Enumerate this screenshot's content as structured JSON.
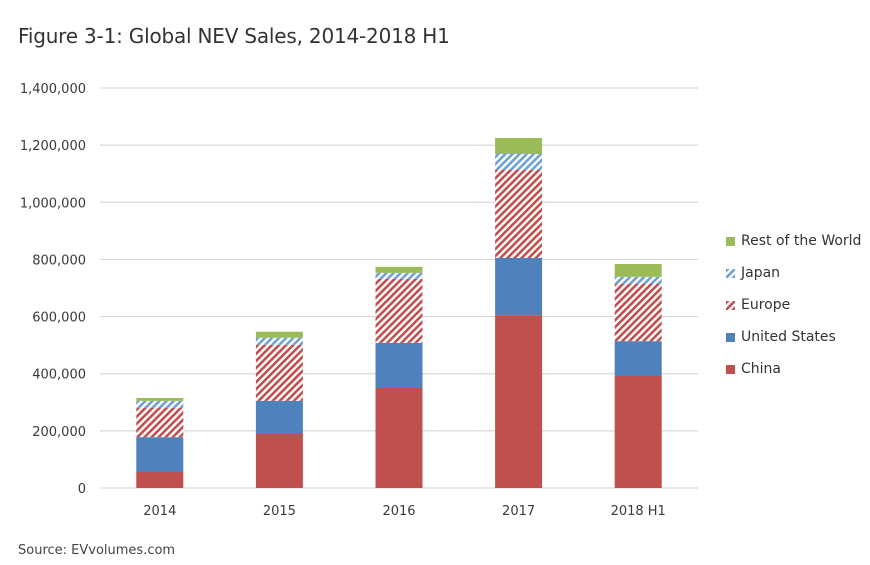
{
  "title": "Figure 3-1: Global NEV Sales, 2014-2018 H1",
  "source": "Source: EVvolumes.com",
  "chart_data": {
    "type": "bar",
    "stacked": true,
    "title": "Figure 3-1: Global NEV Sales, 2014-2018 H1",
    "xlabel": "",
    "ylabel": "",
    "categories": [
      "2014",
      "2015",
      "2016",
      "2017",
      "2018 H1"
    ],
    "ylim": [
      0,
      1400000
    ],
    "yticks": [
      0,
      200000,
      400000,
      600000,
      800000,
      1000000,
      1200000,
      1400000
    ],
    "ytick_labels": [
      "0",
      "200,000",
      "400,000",
      "600,000",
      "800,000",
      "1,000,000",
      "1,200,000",
      "1,400,000"
    ],
    "grid": true,
    "legend_position": "right",
    "series": [
      {
        "name": "China",
        "color": "#c0504d",
        "pattern": "solid",
        "values": [
          56000,
          189000,
          350000,
          605000,
          392000
        ]
      },
      {
        "name": "United States",
        "color": "#4f81bd",
        "pattern": "solid",
        "values": [
          122000,
          116000,
          158000,
          200000,
          122000
        ]
      },
      {
        "name": "Europe",
        "color": "#c0504d",
        "pattern": "hatch",
        "values": [
          102000,
          196000,
          224000,
          308000,
          200000
        ]
      },
      {
        "name": "Japan",
        "color": "#6fa0d8",
        "pattern": "hatch",
        "values": [
          25000,
          25000,
          21000,
          56000,
          25000
        ]
      },
      {
        "name": "Rest of the World",
        "color": "#9bbb59",
        "pattern": "solid",
        "values": [
          10000,
          21000,
          21000,
          56000,
          45000
        ]
      }
    ]
  },
  "legend": [
    {
      "label": "Rest of the World"
    },
    {
      "label": "Japan"
    },
    {
      "label": "Europe"
    },
    {
      "label": "United States"
    },
    {
      "label": "China"
    }
  ]
}
